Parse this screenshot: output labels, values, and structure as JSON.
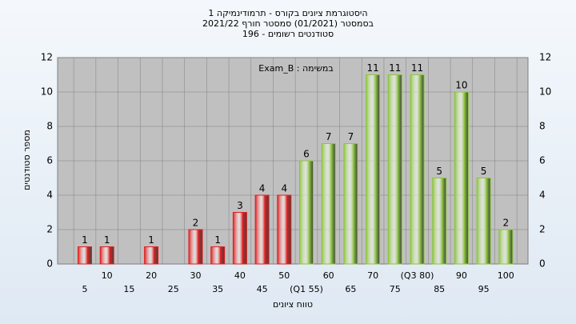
{
  "chart_data": {
    "type": "bar",
    "title_lines": [
      "היסטוגרמת ציונים בקורס - תרמודינמיקה 1",
      "בסמסטר  (01/2021)  סמסטר חורף 2021/22",
      "סטודנטים רשומים - 196"
    ],
    "annotation": "במשימה : Exam_B",
    "x_label": "טווח ציונים",
    "y_label": "מספר סטודנטים",
    "categories": [
      "5",
      "10",
      "15",
      "20",
      "25",
      "30",
      "35",
      "40",
      "45",
      "50",
      "(Q1 55)",
      "60",
      "65",
      "70",
      "75",
      "(Q3 80)",
      "85",
      "90",
      "95",
      "100"
    ],
    "values": [
      1,
      1,
      0,
      1,
      0,
      2,
      1,
      3,
      4,
      4,
      6,
      7,
      7,
      11,
      11,
      11,
      5,
      10,
      5,
      2
    ],
    "colors": [
      "#e02020",
      "#e02020",
      "#e02020",
      "#e02020",
      "#e02020",
      "#e02020",
      "#e02020",
      "#e02020",
      "#e02020",
      "#e02020",
      "#8cc63f",
      "#8cc63f",
      "#8cc63f",
      "#8cc63f",
      "#8cc63f",
      "#8cc63f",
      "#8cc63f",
      "#8cc63f",
      "#8cc63f",
      "#8cc63f"
    ],
    "ylim": [
      0,
      12
    ],
    "yticks": [
      0,
      2,
      4,
      6,
      8,
      10,
      12
    ],
    "grid": true,
    "right_axis": true
  }
}
